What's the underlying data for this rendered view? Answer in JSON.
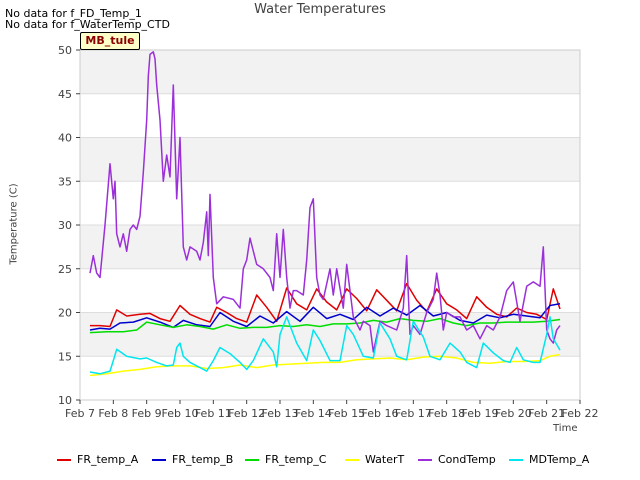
{
  "notes": [
    "No data for f_FD_Temp_1",
    "No data for f_WaterTemp_CTD"
  ],
  "badge": "MB_tule",
  "chart_data": {
    "type": "line",
    "title": "Water Temperatures",
    "xlabel": "Time",
    "ylabel": "Temperature (C)",
    "xlim": [
      7,
      22
    ],
    "ylim": [
      10,
      50
    ],
    "x_ticks": [
      7,
      8,
      9,
      10,
      11,
      12,
      13,
      14,
      15,
      16,
      17,
      18,
      19,
      20,
      21,
      22
    ],
    "x_tick_labels": [
      "Feb 7",
      "Feb 8",
      "Feb 9",
      "Feb 10",
      "Feb 11",
      "Feb 12",
      "Feb 13",
      "Feb 14",
      "Feb 15",
      "Feb 16",
      "Feb 17",
      "Feb 18",
      "Feb 19",
      "Feb 20",
      "Feb 21",
      "Feb 22"
    ],
    "y_ticks": [
      10,
      15,
      20,
      25,
      30,
      35,
      40,
      45,
      50
    ],
    "grid": true,
    "legend_position": "bottom",
    "series": [
      {
        "name": "FR_temp_A",
        "color": "#e00000",
        "x": [
          7.3,
          7.6,
          7.9,
          8.1,
          8.4,
          8.8,
          9.1,
          9.4,
          9.7,
          10.0,
          10.3,
          10.6,
          10.9,
          11.1,
          11.4,
          11.7,
          12.0,
          12.3,
          12.6,
          12.9,
          13.2,
          13.5,
          13.8,
          14.1,
          14.4,
          14.7,
          15.0,
          15.3,
          15.6,
          15.9,
          16.2,
          16.5,
          16.8,
          17.1,
          17.4,
          17.7,
          18.0,
          18.3,
          18.6,
          18.9,
          19.2,
          19.5,
          19.8,
          20.1,
          20.4,
          20.7,
          21.0,
          21.2,
          21.4
        ],
        "y": [
          18.5,
          18.5,
          18.4,
          20.3,
          19.6,
          19.8,
          19.9,
          19.3,
          19.0,
          20.8,
          19.8,
          19.3,
          18.9,
          20.6,
          20.0,
          19.3,
          18.9,
          22.0,
          20.6,
          19.0,
          22.8,
          21.0,
          20.3,
          22.7,
          21.2,
          20.3,
          22.7,
          21.6,
          20.2,
          22.6,
          21.4,
          20.2,
          23.3,
          21.4,
          20.1,
          22.7,
          21.0,
          20.3,
          19.3,
          21.8,
          20.6,
          19.8,
          19.5,
          20.5,
          20.0,
          19.8,
          19.2,
          22.7,
          20.4
        ]
      },
      {
        "name": "FR_temp_B",
        "color": "#0000cc",
        "x": [
          7.3,
          7.6,
          7.9,
          8.2,
          8.6,
          9.0,
          9.4,
          9.8,
          10.1,
          10.5,
          10.9,
          11.2,
          11.6,
          12.0,
          12.4,
          12.8,
          13.2,
          13.6,
          14.0,
          14.4,
          14.8,
          15.2,
          15.6,
          16.0,
          16.4,
          16.8,
          17.2,
          17.6,
          18.0,
          18.4,
          18.8,
          19.2,
          19.6,
          20.0,
          20.4,
          20.8,
          21.1,
          21.4
        ],
        "y": [
          18.0,
          18.2,
          18.1,
          18.8,
          18.9,
          19.4,
          18.9,
          18.3,
          19.1,
          18.6,
          18.4,
          20.0,
          19.0,
          18.4,
          19.6,
          18.8,
          20.1,
          19.0,
          20.6,
          19.3,
          19.8,
          19.2,
          20.6,
          19.6,
          20.5,
          19.7,
          20.8,
          19.6,
          20.0,
          19.1,
          18.8,
          19.7,
          19.4,
          19.8,
          19.6,
          19.4,
          20.8,
          21.0
        ]
      },
      {
        "name": "FR_temp_C",
        "color": "#00dd00",
        "x": [
          7.3,
          7.8,
          8.3,
          8.7,
          9.0,
          9.4,
          9.8,
          10.2,
          10.6,
          11.0,
          11.4,
          11.8,
          12.2,
          12.6,
          13.0,
          13.4,
          13.8,
          14.2,
          14.6,
          15.0,
          15.4,
          15.8,
          16.2,
          16.6,
          17.0,
          17.4,
          17.8,
          18.2,
          18.6,
          19.0,
          19.4,
          19.8,
          20.2,
          20.6,
          21.0,
          21.4
        ],
        "y": [
          17.7,
          17.8,
          17.8,
          18.0,
          18.9,
          18.6,
          18.3,
          18.6,
          18.4,
          18.1,
          18.6,
          18.2,
          18.3,
          18.3,
          18.5,
          18.4,
          18.6,
          18.4,
          18.7,
          18.7,
          18.8,
          19.1,
          18.9,
          19.3,
          19.1,
          19.0,
          19.3,
          18.8,
          18.5,
          18.8,
          18.8,
          18.9,
          18.9,
          18.9,
          19.0,
          19.2
        ]
      },
      {
        "name": "WaterT",
        "color": "#ffff00",
        "x": [
          7.3,
          7.8,
          8.3,
          8.8,
          9.3,
          9.8,
          10.3,
          10.8,
          11.3,
          11.8,
          12.3,
          12.8,
          13.3,
          13.8,
          14.3,
          14.8,
          15.3,
          15.8,
          16.3,
          16.8,
          17.3,
          17.8,
          18.3,
          18.8,
          19.3,
          19.8,
          20.3,
          20.8,
          21.1,
          21.4
        ],
        "y": [
          12.8,
          13.0,
          13.3,
          13.5,
          13.8,
          13.9,
          13.9,
          13.6,
          13.7,
          14.0,
          13.7,
          14.0,
          14.1,
          14.2,
          14.3,
          14.3,
          14.6,
          14.7,
          14.8,
          14.6,
          14.9,
          15.0,
          14.8,
          14.3,
          14.2,
          14.4,
          14.4,
          14.5,
          15.0,
          15.2
        ]
      },
      {
        "name": "CondTemp",
        "color": "#9b30d9",
        "x": [
          7.3,
          7.4,
          7.5,
          7.6,
          7.75,
          7.9,
          8.0,
          8.05,
          8.1,
          8.2,
          8.3,
          8.4,
          8.5,
          8.6,
          8.7,
          8.8,
          8.9,
          9.0,
          9.05,
          9.1,
          9.2,
          9.25,
          9.3,
          9.4,
          9.5,
          9.6,
          9.7,
          9.8,
          9.9,
          10.0,
          10.1,
          10.2,
          10.3,
          10.5,
          10.6,
          10.7,
          10.8,
          10.85,
          10.9,
          11.0,
          11.1,
          11.3,
          11.6,
          11.8,
          11.9,
          12.0,
          12.1,
          12.3,
          12.5,
          12.7,
          12.8,
          12.9,
          13.0,
          13.1,
          13.2,
          13.3,
          13.4,
          13.5,
          13.7,
          13.8,
          13.9,
          14.0,
          14.1,
          14.2,
          14.3,
          14.5,
          14.6,
          14.7,
          14.9,
          15.0,
          15.2,
          15.4,
          15.5,
          15.7,
          15.8,
          16.0,
          16.2,
          16.5,
          16.7,
          16.8,
          16.9,
          17.0,
          17.2,
          17.4,
          17.6,
          17.7,
          17.8,
          17.9,
          18.0,
          18.2,
          18.4,
          18.6,
          18.8,
          19.0,
          19.2,
          19.4,
          19.6,
          19.8,
          20.0,
          20.2,
          20.4,
          20.6,
          20.8,
          20.9,
          21.0,
          21.1,
          21.2,
          21.3,
          21.4
        ],
        "y": [
          24.5,
          26.5,
          24.5,
          24.0,
          30.0,
          37.0,
          33.0,
          35.0,
          29.0,
          27.5,
          29.0,
          27.0,
          29.5,
          30.0,
          29.5,
          31.0,
          36.0,
          42.0,
          47.0,
          49.5,
          49.8,
          49.0,
          46.0,
          42.0,
          35.0,
          38.0,
          35.5,
          46.0,
          33.0,
          40.0,
          27.5,
          26.0,
          27.5,
          27.0,
          26.0,
          28.0,
          31.5,
          26.5,
          33.5,
          24.0,
          21.0,
          21.8,
          21.5,
          20.5,
          25.0,
          26.0,
          28.5,
          25.5,
          25.0,
          24.0,
          22.5,
          29.0,
          24.0,
          29.5,
          24.0,
          20.5,
          22.5,
          22.5,
          22.0,
          26.0,
          32.0,
          33.0,
          24.0,
          22.0,
          21.5,
          25.0,
          22.0,
          25.0,
          20.5,
          25.5,
          19.5,
          18.0,
          19.0,
          18.5,
          15.5,
          19.0,
          18.5,
          18.0,
          20.5,
          26.5,
          17.5,
          18.5,
          17.5,
          20.0,
          21.5,
          24.5,
          22.0,
          18.0,
          20.0,
          19.5,
          19.5,
          18.0,
          18.5,
          17.0,
          18.5,
          18.0,
          19.5,
          22.5,
          23.5,
          19.0,
          23.0,
          23.5,
          23.0,
          27.5,
          18.0,
          17.0,
          16.5,
          18.0,
          18.5
        ]
      },
      {
        "name": "MDTemp_A",
        "color": "#00e5ee",
        "x": [
          7.3,
          7.6,
          7.9,
          8.0,
          8.1,
          8.4,
          8.8,
          9.0,
          9.3,
          9.6,
          9.8,
          9.9,
          10.0,
          10.1,
          10.3,
          10.6,
          10.8,
          11.0,
          11.2,
          11.5,
          11.8,
          12.0,
          12.2,
          12.5,
          12.8,
          12.9,
          13.0,
          13.2,
          13.5,
          13.8,
          14.0,
          14.2,
          14.5,
          14.8,
          15.0,
          15.2,
          15.5,
          15.8,
          16.0,
          16.3,
          16.5,
          16.8,
          17.0,
          17.3,
          17.5,
          17.8,
          18.1,
          18.4,
          18.6,
          18.9,
          19.1,
          19.4,
          19.7,
          19.9,
          20.1,
          20.3,
          20.6,
          20.8,
          21.0,
          21.1,
          21.2,
          21.4
        ],
        "y": [
          13.2,
          13.0,
          13.3,
          14.5,
          15.8,
          15.0,
          14.7,
          14.8,
          14.3,
          13.9,
          14.0,
          16.0,
          16.5,
          15.0,
          14.3,
          13.7,
          13.3,
          14.5,
          16.0,
          15.3,
          14.3,
          13.5,
          14.5,
          17.0,
          15.5,
          13.8,
          17.5,
          19.5,
          16.5,
          14.5,
          18.0,
          16.8,
          14.5,
          14.5,
          18.5,
          17.5,
          15.0,
          14.8,
          18.8,
          17.0,
          15.0,
          14.6,
          19.0,
          17.2,
          15.0,
          14.6,
          16.5,
          15.5,
          14.3,
          13.7,
          16.5,
          15.4,
          14.5,
          14.3,
          16.0,
          14.6,
          14.3,
          14.3,
          17.5,
          19.5,
          17.0,
          15.7
        ]
      }
    ]
  }
}
